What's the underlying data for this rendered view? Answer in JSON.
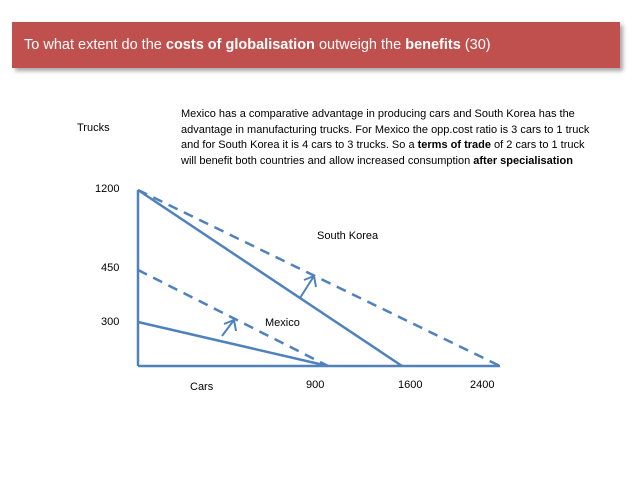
{
  "title": {
    "part1": "To what extent do the ",
    "bold1": "costs of globalisation",
    "part2": " outweigh the ",
    "bold2": "benefits",
    "part3": " (30)"
  },
  "explanation": {
    "part1": "Mexico has a comparative advantage in producing cars and South Korea has the advantage in manufacturing trucks. For Mexico the opp.cost ratio is 3 cars to 1 truck and for South Korea it is 4 cars to 3 trucks. So a ",
    "bold1": "terms of trade",
    "part2": " of 2 cars to 1 truck will benefit both countries and allow increased consumption ",
    "bold2": "after specialisation"
  },
  "axes": {
    "y_label": "Trucks",
    "x_label": "Cars",
    "y_ticks": [
      "1200",
      "450",
      "300"
    ],
    "x_ticks": [
      "900",
      "1600",
      "2400"
    ]
  },
  "labels": {
    "south_korea": "South Korea",
    "mexico": "Mexico"
  },
  "colors": {
    "title_bg": "#c0504d",
    "line": "#4f81bd"
  },
  "chart_data": {
    "type": "line",
    "title": "",
    "xlabel": "Cars",
    "ylabel": "Trucks",
    "series": [
      {
        "name": "South Korea",
        "style": "solid",
        "points": [
          [
            0,
            1200
          ],
          [
            1600,
            0
          ]
        ]
      },
      {
        "name": "",
        "style": "dashed",
        "points": [
          [
            0,
            1200
          ],
          [
            2400,
            0
          ]
        ]
      },
      {
        "name": "Mexico",
        "style": "solid",
        "points": [
          [
            0,
            300
          ],
          [
            900,
            0
          ]
        ]
      },
      {
        "name": "",
        "style": "dashed",
        "points": [
          [
            0,
            450
          ],
          [
            900,
            0
          ]
        ]
      }
    ]
  }
}
